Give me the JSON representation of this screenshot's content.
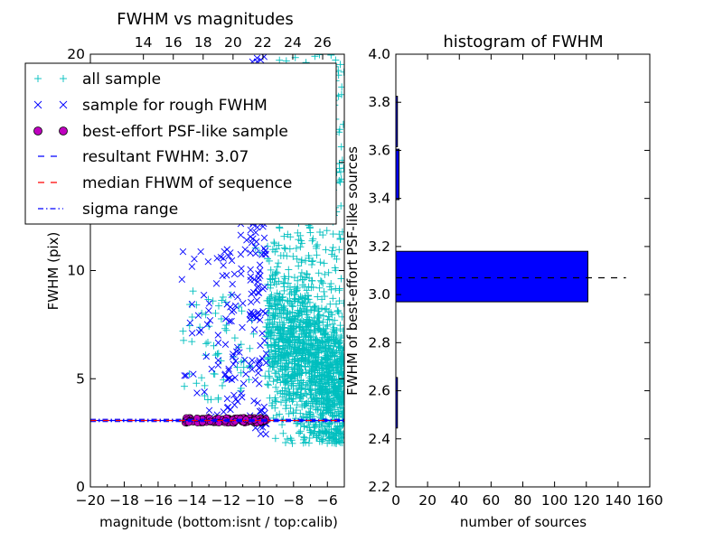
{
  "chart_data": [
    {
      "type": "scatter",
      "title": "FWHM vs magnitudes",
      "xlabel": "magnitude (bottom:isnt / top:calib)",
      "ylabel": "FWHM (pix)",
      "xlim": [
        -20,
        -5
      ],
      "ylim": [
        0,
        20
      ],
      "x_ticks": [
        "−20",
        "−18",
        "−16",
        "−14",
        "−12",
        "−10",
        "−8",
        "−6"
      ],
      "y_ticks": [
        "0",
        "5",
        "10",
        "15",
        "20"
      ],
      "top_axis": {
        "lim": [
          10.45,
          27.45
        ],
        "ticks": [
          "14",
          "16",
          "18",
          "20",
          "22",
          "24",
          "26"
        ]
      },
      "legend_position": "upper-left",
      "legend": [
        {
          "label": "all sample",
          "marker": "plus",
          "color": "#00bfbf"
        },
        {
          "label": "sample for rough FWHM",
          "marker": "x",
          "color": "#0000ff"
        },
        {
          "label": "best-effort PSF-like sample",
          "marker": "circle",
          "color": "#bf00bf"
        },
        {
          "label": "resultant FWHM: 3.07",
          "line": "dashed",
          "color": "#0000ff"
        },
        {
          "label": "median FHWM of sequence",
          "line": "dashed",
          "color": "#ff0000"
        },
        {
          "label": "sigma range",
          "line": "dashdot",
          "color": "#0000ff"
        }
      ],
      "resultant_fwhm": 3.07,
      "series": [
        {
          "name": "all sample",
          "color": "#00bfbf",
          "x_range": [
            -14.6,
            -5.0
          ],
          "y_range": [
            2.0,
            20
          ],
          "dense_from_x": -9.6
        },
        {
          "name": "sample for rough FWHM",
          "color": "#0000ff",
          "x_range": [
            -14.6,
            -9.6
          ],
          "y_range": [
            2.4,
            20
          ]
        },
        {
          "name": "best-effort PSF-like sample",
          "color": "#bf00bf",
          "x_range": [
            -14.4,
            -9.6
          ],
          "y_range": [
            2.95,
            3.2
          ]
        }
      ]
    },
    {
      "type": "bar",
      "orientation": "horizontal",
      "title": "histogram of FWHM",
      "xlabel": "number of sources",
      "ylabel": "FWHM of best-effort PSF-like sources",
      "xlim": [
        0,
        160
      ],
      "ylim": [
        2.2,
        4.0
      ],
      "x_ticks": [
        "0",
        "20",
        "40",
        "60",
        "80",
        "100",
        "120",
        "140",
        "160"
      ],
      "y_ticks": [
        "2.2",
        "2.4",
        "2.6",
        "2.8",
        "3.0",
        "3.2",
        "3.4",
        "3.6",
        "3.8",
        "4.0"
      ],
      "bin_width": 0.21,
      "bins": [
        {
          "center": 2.55,
          "count": 1
        },
        {
          "center": 3.075,
          "count": 121
        },
        {
          "center": 3.5,
          "count": 2
        },
        {
          "center": 3.72,
          "count": 1
        }
      ],
      "reference_line": {
        "y": 3.07,
        "x_extent": [
          0,
          145
        ],
        "style": "dashed",
        "color": "#000000"
      },
      "color": "#0000ff"
    }
  ]
}
